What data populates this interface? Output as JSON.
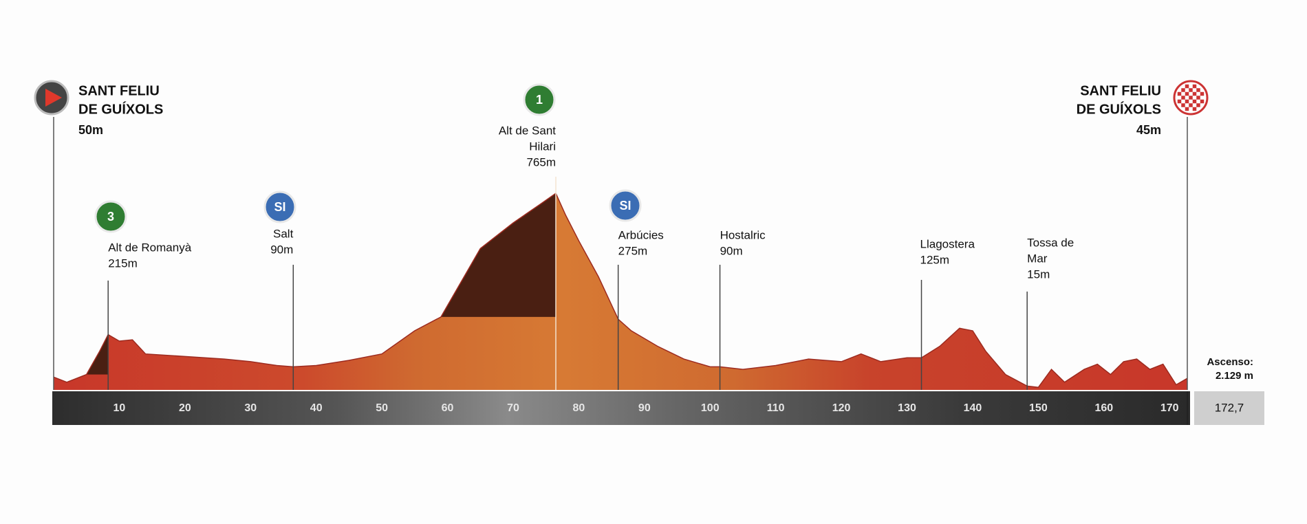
{
  "chart_data": {
    "type": "elevation-profile",
    "x": [
      0,
      2,
      5,
      7,
      8.3,
      10,
      12,
      14,
      20,
      26,
      30,
      34,
      36.5,
      40,
      45,
      50,
      55,
      59,
      65,
      70,
      74,
      76.5,
      78,
      80,
      83,
      86,
      88,
      92,
      96,
      100,
      101.5,
      105,
      110,
      115,
      120,
      123,
      126,
      130,
      132.2,
      135,
      138,
      140,
      142,
      145,
      148.3,
      150,
      152,
      154,
      157,
      159,
      161,
      163,
      165,
      167,
      169,
      171,
      172.7
    ],
    "values": [
      50,
      30,
      60,
      150,
      215,
      190,
      195,
      140,
      130,
      120,
      110,
      95,
      90,
      95,
      115,
      140,
      230,
      284,
      550,
      650,
      720,
      765,
      680,
      580,
      440,
      275,
      230,
      170,
      120,
      90,
      90,
      80,
      95,
      120,
      110,
      140,
      110,
      125,
      125,
      170,
      240,
      230,
      150,
      60,
      15,
      10,
      80,
      30,
      80,
      100,
      60,
      110,
      120,
      80,
      100,
      20,
      45
    ],
    "xlim": [
      0,
      172.7
    ],
    "ylim": [
      0,
      800
    ],
    "xticks": [
      10,
      20,
      30,
      40,
      50,
      60,
      70,
      80,
      90,
      100,
      110,
      120,
      130,
      140,
      150,
      160,
      170
    ],
    "color": "#c8372a",
    "climb_color": "#4a1f12",
    "start": {
      "lines": [
        "SANT FELIU",
        "DE GUÍXOLS"
      ],
      "elevation": "50m"
    },
    "finish": {
      "lines": [
        "SANT FELIU",
        "DE GUÍXOLS"
      ],
      "elevation": "45m"
    },
    "points": [
      {
        "km": 8.3,
        "icon": "3",
        "lines": [
          "Alt de Romanyà"
        ],
        "elevation": "215m"
      },
      {
        "km": 36.5,
        "icon": "SI",
        "lines": [
          "Salt"
        ],
        "elevation": "90m"
      },
      {
        "km": 76.5,
        "icon": "1",
        "lines": [
          "Alt de Sant",
          "Hilari"
        ],
        "elevation": "765m"
      },
      {
        "km": 86,
        "icon": "SI",
        "lines": [
          "Arbúcies"
        ],
        "elevation": "275m"
      },
      {
        "km": 101.5,
        "lines": [
          "Hostalric"
        ],
        "elevation": "90m"
      },
      {
        "km": 132.2,
        "lines": [
          "Llagostera"
        ],
        "elevation": "125m"
      },
      {
        "km": 148.3,
        "lines": [
          "Tossa de",
          "Mar"
        ],
        "elevation": "15m"
      }
    ],
    "climbs": [
      {
        "start": 5,
        "end": 8.3
      },
      {
        "start": 59,
        "end": 76.5
      }
    ],
    "distance": {
      "value": 172.7,
      "label": "172,7"
    },
    "ascent_title": "Ascenso:",
    "ascent": {
      "value": 2129,
      "label": "2.129 m"
    }
  }
}
